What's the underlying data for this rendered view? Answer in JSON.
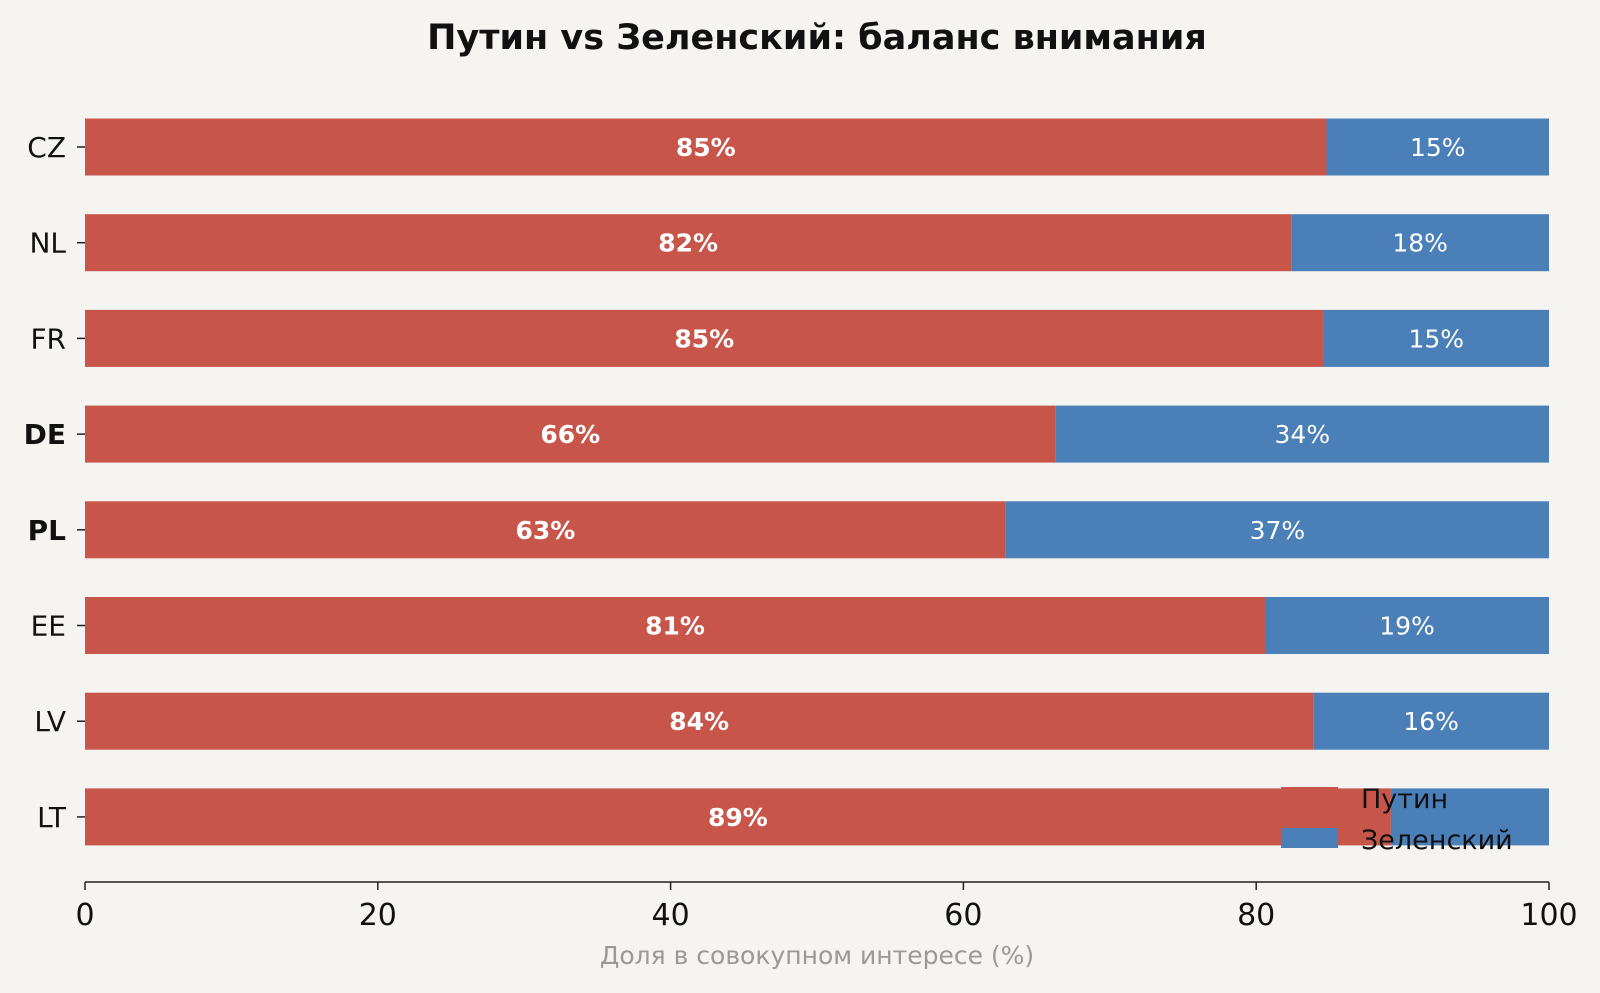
{
  "chart_data": {
    "type": "bar",
    "orientation": "horizontal",
    "stacked": true,
    "title": "Путин vs Зеленский: баланс внимания",
    "xlabel": "Доля в совокупном интересе (%)",
    "ylabel": "",
    "xlim": [
      0,
      100
    ],
    "xticks": [
      0,
      20,
      40,
      60,
      80,
      100
    ],
    "categories": [
      "CZ",
      "NL",
      "FR",
      "DE",
      "PL",
      "EE",
      "LV",
      "LT"
    ],
    "bold_categories": [
      "DE",
      "PL"
    ],
    "series": [
      {
        "name": "Путин",
        "color": "#c8554a",
        "label_style": "bold",
        "values": [
          84.8,
          82.4,
          84.6,
          66.3,
          62.9,
          80.6,
          83.9,
          89.2
        ],
        "labels": [
          "85%",
          "82%",
          "85%",
          "66%",
          "63%",
          "81%",
          "84%",
          "89%"
        ]
      },
      {
        "name": "Зеленский",
        "color": "#4a7fb8",
        "label_style": "normal",
        "values": [
          15.2,
          17.6,
          15.4,
          33.7,
          37.1,
          19.4,
          16.1,
          10.8
        ],
        "labels": [
          "15%",
          "18%",
          "15%",
          "34%",
          "37%",
          "19%",
          "16%",
          ""
        ]
      }
    ],
    "legend": {
      "position": "lower-right",
      "entries": [
        "Путин",
        "Зеленский"
      ]
    },
    "grid": false
  }
}
